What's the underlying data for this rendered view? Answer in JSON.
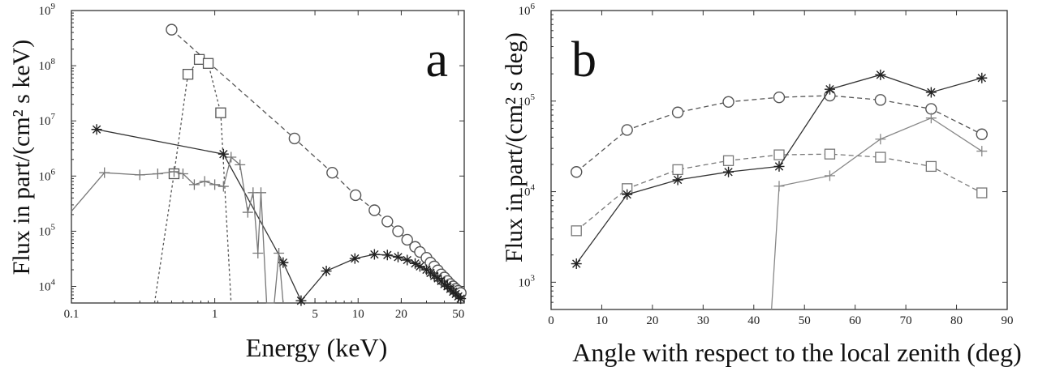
{
  "chart_data": [
    {
      "type": "line",
      "panel_label": "a",
      "xlabel": "Energy (keV)",
      "ylabel": "Flux in part/(cm² s keV)",
      "x_scale": "log",
      "y_scale": "log",
      "xlim": [
        0.1,
        55
      ],
      "ylim": [
        5000,
        1000000000
      ],
      "x_ticks": [
        {
          "value": 0.1,
          "label": "0.1"
        },
        {
          "value": 1,
          "label": "1"
        },
        {
          "value": 5,
          "label": "5"
        },
        {
          "value": 10,
          "label": "10"
        },
        {
          "value": 20,
          "label": "20"
        },
        {
          "value": 50,
          "label": "50"
        }
      ],
      "y_ticks": [
        {
          "value": 10000,
          "base": "10",
          "exp": "4"
        },
        {
          "value": 100000,
          "base": "10",
          "exp": "5"
        },
        {
          "value": 1000000,
          "base": "10",
          "exp": "6"
        },
        {
          "value": 10000000,
          "base": "10",
          "exp": "7"
        },
        {
          "value": 100000000,
          "base": "10",
          "exp": "8"
        },
        {
          "value": 1000000000,
          "base": "10",
          "exp": "9"
        }
      ],
      "grid": false,
      "series": [
        {
          "marker": "circle",
          "line": "dashed",
          "color": "#555555",
          "x": [
            0.5,
            3.6,
            6.6,
            9.6,
            13,
            16,
            19,
            22,
            25,
            27,
            30,
            32,
            34,
            36,
            38,
            40,
            42,
            44,
            46,
            48,
            50,
            52
          ],
          "y": [
            450000000,
            4800000,
            1150000,
            450000,
            240000,
            150000,
            100000,
            70000,
            52000,
            42000,
            33000,
            27000,
            23000,
            19500,
            16500,
            14500,
            12500,
            11000,
            10000,
            9000,
            8300,
            7600
          ]
        },
        {
          "marker": "square",
          "line": "dotted",
          "color": "#555555",
          "x": [
            0.38,
            0.52,
            0.65,
            0.78,
            0.9,
            1.1,
            1.3
          ],
          "y": [
            5000,
            1100000,
            70000000,
            130000000,
            110000000,
            14000000,
            5000
          ]
        },
        {
          "marker": "star",
          "line": "solid",
          "color": "#333333",
          "x": [
            0.15,
            1.15,
            3.0,
            4.0,
            6.0,
            9.5,
            13,
            16,
            19,
            22,
            25,
            27,
            30,
            32,
            34,
            36,
            38,
            40,
            42,
            44,
            46,
            48,
            50,
            52
          ],
          "y": [
            7000000,
            2500000,
            27000,
            5500,
            19000,
            32000,
            38000,
            37000,
            34000,
            30000,
            26000,
            23000,
            20000,
            17500,
            15500,
            14000,
            12500,
            11000,
            10000,
            9000,
            8000,
            7300,
            6600,
            6000
          ],
          "x_lim_left": 0.15
        },
        {
          "marker": "plus",
          "line": "solid",
          "color": "#777777",
          "x": [
            0.1,
            0.17,
            0.3,
            0.4,
            0.52,
            0.6,
            0.72,
            0.85,
            1.0,
            1.15,
            1.3,
            1.5,
            1.7,
            1.85,
            2.0,
            2.1,
            2.3,
            2.6,
            2.8,
            3.0
          ],
          "y": [
            230000,
            1150000,
            1050000,
            1100000,
            1200000,
            1100000,
            700000,
            800000,
            700000,
            650000,
            2200000,
            1600000,
            220000,
            500000,
            40000,
            500000,
            5000,
            5000,
            40000,
            5000
          ]
        }
      ]
    },
    {
      "type": "line",
      "panel_label": "b",
      "xlabel": "Angle with respect to the local zenith (deg)",
      "ylabel": "Flux in part/(cm² s deg)",
      "x_scale": "linear",
      "y_scale": "log",
      "xlim": [
        0,
        90
      ],
      "ylim": [
        500,
        1000000
      ],
      "x_ticks": [
        {
          "value": 0,
          "label": "0"
        },
        {
          "value": 10,
          "label": "10"
        },
        {
          "value": 20,
          "label": "20"
        },
        {
          "value": 30,
          "label": "30"
        },
        {
          "value": 40,
          "label": "40"
        },
        {
          "value": 50,
          "label": "50"
        },
        {
          "value": 60,
          "label": "60"
        },
        {
          "value": 70,
          "label": "70"
        },
        {
          "value": 80,
          "label": "80"
        },
        {
          "value": 90,
          "label": "90"
        }
      ],
      "y_ticks": [
        {
          "value": 1000,
          "base": "10",
          "exp": "3"
        },
        {
          "value": 10000,
          "base": "10",
          "exp": "4"
        },
        {
          "value": 100000,
          "base": "10",
          "exp": "5"
        },
        {
          "value": 1000000,
          "base": "10",
          "exp": "6"
        }
      ],
      "grid": false,
      "series": [
        {
          "marker": "circle",
          "line": "dashed",
          "color": "#555555",
          "x": [
            5,
            15,
            25,
            35,
            45,
            55,
            65,
            75,
            85
          ],
          "y": [
            16500,
            48000,
            75000,
            98000,
            110000,
            115000,
            103000,
            82000,
            43000
          ]
        },
        {
          "marker": "square",
          "line": "dashed",
          "color": "#777777",
          "x": [
            5,
            15,
            25,
            35,
            45,
            55,
            65,
            75,
            85
          ],
          "y": [
            3700,
            10800,
            17500,
            22000,
            25500,
            26000,
            24000,
            19000,
            9700
          ]
        },
        {
          "marker": "star",
          "line": "solid",
          "color": "#333333",
          "x": [
            5,
            15,
            25,
            35,
            45,
            55,
            65,
            75,
            85
          ],
          "y": [
            1600,
            9300,
            13500,
            16500,
            19000,
            135000,
            195000,
            125000,
            180000
          ]
        },
        {
          "marker": "plus",
          "line": "solid",
          "color": "#888888",
          "x": [
            43.5,
            45,
            55,
            65,
            75,
            85
          ],
          "y": [
            500,
            11500,
            15000,
            38000,
            65000,
            28000
          ]
        }
      ]
    }
  ]
}
